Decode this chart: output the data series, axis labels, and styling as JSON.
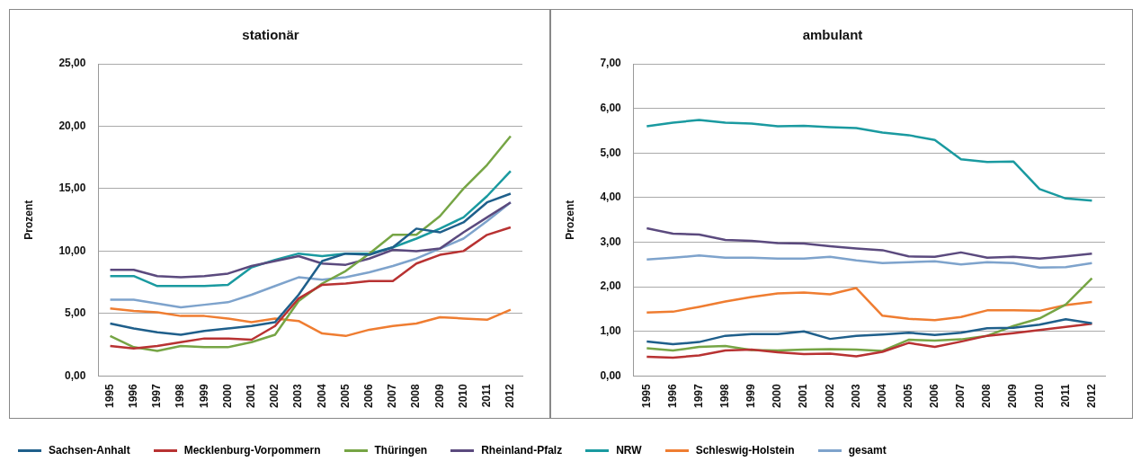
{
  "chart_data": [
    {
      "type": "line",
      "title": "stationär",
      "ylabel": "Prozent",
      "categories": [
        "1995",
        "1996",
        "1997",
        "1998",
        "1999",
        "2000",
        "2001",
        "2002",
        "2003",
        "2004",
        "2005",
        "2006",
        "2007",
        "2008",
        "2009",
        "2010",
        "2011",
        "2012"
      ],
      "ylim": [
        0,
        25
      ],
      "yticks": [
        {
          "value": 0,
          "label": "0,00"
        },
        {
          "value": 5,
          "label": "5,00"
        },
        {
          "value": 10,
          "label": "10,00"
        },
        {
          "value": 15,
          "label": "15,00"
        },
        {
          "value": 20,
          "label": "20,00"
        },
        {
          "value": 25,
          "label": "25,00"
        }
      ],
      "grid": "y",
      "legend": "bottom",
      "marker": "none",
      "line_style": "solid",
      "series": [
        {
          "name": "Sachsen-Anhalt",
          "color": "#1f5f8b",
          "values": [
            4.2,
            3.8,
            3.5,
            3.3,
            3.6,
            3.8,
            4.0,
            4.3,
            6.5,
            9.2,
            9.8,
            9.7,
            10.3,
            11.8,
            11.5,
            12.3,
            13.9,
            14.6
          ]
        },
        {
          "name": "Mecklenburg-Vorpommern",
          "color": "#b83232",
          "values": [
            2.4,
            2.2,
            2.4,
            2.7,
            3.0,
            3.0,
            2.9,
            4.0,
            6.2,
            7.3,
            7.4,
            7.6,
            7.6,
            9.0,
            9.7,
            10.0,
            11.3,
            11.9
          ]
        },
        {
          "name": "Thüringen",
          "color": "#76a545",
          "values": [
            3.2,
            2.3,
            2.0,
            2.4,
            2.3,
            2.3,
            2.7,
            3.3,
            6.0,
            7.4,
            8.4,
            9.8,
            11.3,
            11.3,
            12.8,
            15.0,
            16.9,
            19.2
          ]
        },
        {
          "name": "Rheinland-Pfalz",
          "color": "#5b4a7e",
          "values": [
            8.5,
            8.5,
            8.0,
            7.9,
            8.0,
            8.2,
            8.8,
            9.2,
            9.6,
            9.0,
            8.9,
            9.4,
            10.1,
            10.0,
            10.2,
            11.5,
            12.7,
            13.9
          ]
        },
        {
          "name": "NRW",
          "color": "#1a9aa0",
          "values": [
            8.0,
            8.0,
            7.2,
            7.2,
            7.2,
            7.3,
            8.7,
            9.3,
            9.8,
            9.6,
            9.8,
            9.8,
            10.3,
            11.0,
            11.8,
            12.7,
            14.4,
            16.4
          ]
        },
        {
          "name": "Schleswig-Holstein",
          "color": "#ef7d31",
          "values": [
            5.4,
            5.2,
            5.1,
            4.8,
            4.8,
            4.6,
            4.3,
            4.6,
            4.4,
            3.4,
            3.2,
            3.7,
            4.0,
            4.2,
            4.7,
            4.6,
            4.5,
            5.3
          ]
        },
        {
          "name": "gesamt",
          "color": "#7ea3cc",
          "values": [
            6.1,
            6.1,
            5.8,
            5.5,
            5.7,
            5.9,
            6.5,
            7.2,
            7.9,
            7.7,
            7.9,
            8.3,
            8.8,
            9.4,
            10.2,
            11.0,
            12.4,
            13.9
          ]
        }
      ]
    },
    {
      "type": "line",
      "title": "ambulant",
      "ylabel": "Prozent",
      "categories": [
        "1995",
        "1996",
        "1997",
        "1998",
        "1999",
        "2000",
        "2001",
        "2002",
        "2003",
        "2004",
        "2005",
        "2006",
        "2007",
        "2008",
        "2009",
        "2010",
        "2011",
        "2012"
      ],
      "ylim": [
        0,
        7
      ],
      "yticks": [
        {
          "value": 0,
          "label": "0,00"
        },
        {
          "value": 1,
          "label": "1,00"
        },
        {
          "value": 2,
          "label": "2,00"
        },
        {
          "value": 3,
          "label": "3,00"
        },
        {
          "value": 4,
          "label": "4,00"
        },
        {
          "value": 5,
          "label": "5,00"
        },
        {
          "value": 6,
          "label": "6,00"
        },
        {
          "value": 7,
          "label": "7,00"
        }
      ],
      "grid": "y",
      "legend": "bottom",
      "marker": "none",
      "line_style": "solid",
      "series": [
        {
          "name": "Sachsen-Anhalt",
          "color": "#1f5f8b",
          "values": [
            0.77,
            0.71,
            0.76,
            0.9,
            0.94,
            0.94,
            1.0,
            0.83,
            0.9,
            0.93,
            0.97,
            0.92,
            0.97,
            1.07,
            1.08,
            1.15,
            1.27,
            1.18
          ]
        },
        {
          "name": "Mecklenburg-Vorpommern",
          "color": "#b83232",
          "values": [
            0.43,
            0.41,
            0.46,
            0.57,
            0.59,
            0.53,
            0.49,
            0.5,
            0.44,
            0.54,
            0.74,
            0.65,
            0.77,
            0.9,
            0.96,
            1.03,
            1.1,
            1.17
          ]
        },
        {
          "name": "Thüringen",
          "color": "#76a545",
          "values": [
            0.62,
            0.57,
            0.65,
            0.67,
            0.58,
            0.57,
            0.59,
            0.6,
            0.59,
            0.56,
            0.81,
            0.79,
            0.82,
            0.9,
            1.12,
            1.29,
            1.6,
            2.19
          ]
        },
        {
          "name": "Rheinland-Pfalz",
          "color": "#5b4a7e",
          "values": [
            3.31,
            3.19,
            3.17,
            3.05,
            3.03,
            2.98,
            2.97,
            2.91,
            2.86,
            2.82,
            2.68,
            2.67,
            2.77,
            2.65,
            2.67,
            2.63,
            2.68,
            2.74
          ]
        },
        {
          "name": "NRW",
          "color": "#1a9aa0",
          "values": [
            5.6,
            5.68,
            5.74,
            5.68,
            5.66,
            5.6,
            5.61,
            5.58,
            5.56,
            5.46,
            5.4,
            5.29,
            4.86,
            4.8,
            4.81,
            4.19,
            3.98,
            3.93
          ]
        },
        {
          "name": "Schleswig-Holstein",
          "color": "#ef7d31",
          "values": [
            1.42,
            1.44,
            1.55,
            1.67,
            1.77,
            1.85,
            1.87,
            1.83,
            1.97,
            1.35,
            1.28,
            1.25,
            1.32,
            1.47,
            1.47,
            1.46,
            1.59,
            1.66
          ]
        },
        {
          "name": "gesamt",
          "color": "#7ea3cc",
          "values": [
            2.61,
            2.65,
            2.7,
            2.65,
            2.65,
            2.63,
            2.63,
            2.67,
            2.59,
            2.53,
            2.55,
            2.57,
            2.5,
            2.55,
            2.53,
            2.43,
            2.44,
            2.53
          ]
        }
      ]
    }
  ]
}
